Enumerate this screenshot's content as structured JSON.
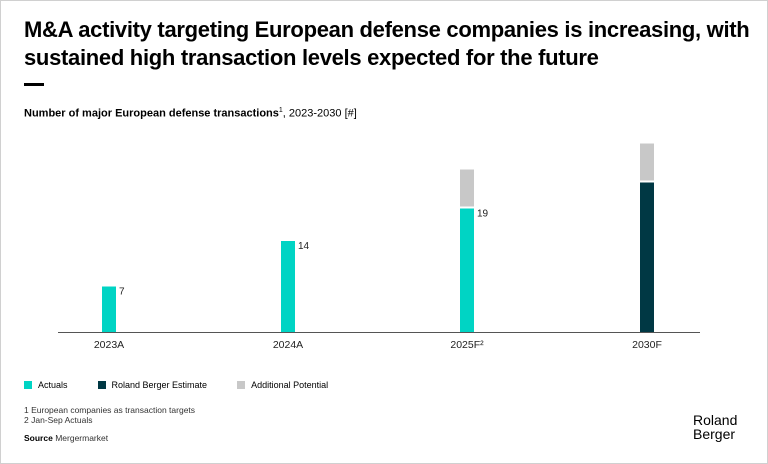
{
  "title": "M&A activity targeting European defense companies is increasing, with sustained high transaction levels expected for the future",
  "subtitle": {
    "bold": "Number of major European defense transactions",
    "sup": "1",
    "rest": ", 2023-2030 [#]"
  },
  "colors": {
    "actuals": "#00d4c4",
    "estimate": "#003844",
    "potential": "#c8c8c8",
    "axis": "#555555"
  },
  "chart_data": {
    "type": "bar",
    "stacked": true,
    "title": "Number of major European defense transactions, 2023-2030 [#]",
    "xlabel": "",
    "ylabel": "",
    "categories": [
      "2023A",
      "2024A",
      "2025F²",
      "2030F"
    ],
    "series": [
      {
        "name": "Actuals",
        "values": [
          7,
          14,
          19,
          0
        ]
      },
      {
        "name": "Roland Berger Estimate",
        "values": [
          0,
          0,
          0,
          23
        ]
      },
      {
        "name": "Additional Potential",
        "values": [
          0,
          0,
          6,
          6
        ]
      }
    ],
    "data_labels": [
      "7",
      "14",
      "19",
      ""
    ],
    "ylim": [
      0,
      30
    ],
    "grid": false,
    "legend": "bottom-left"
  },
  "legend": [
    {
      "label": "Actuals",
      "color": "#00d4c4"
    },
    {
      "label": "Roland Berger Estimate",
      "color": "#003844"
    },
    {
      "label": "Additional Potential",
      "color": "#c8c8c8"
    }
  ],
  "notes": [
    "1 European companies as transaction targets",
    "2  Jan-Sep Actuals"
  ],
  "source": {
    "label": "Source",
    "value": "Mergermarket"
  },
  "logo": {
    "line1": "Roland",
    "line2": "Berger"
  }
}
